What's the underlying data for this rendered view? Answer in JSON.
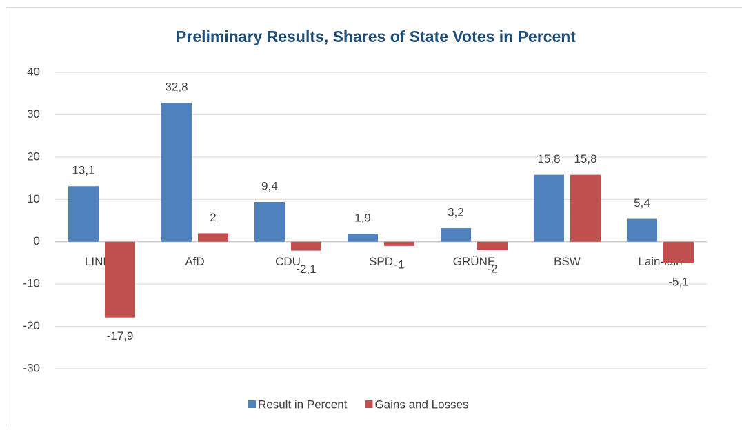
{
  "chart_data": {
    "type": "bar",
    "title": "Preliminary Results, Shares of State Votes in Percent",
    "categories": [
      "LINKE",
      "AfD",
      "CDU",
      "SPD",
      "GRÜNE",
      "BSW",
      "Lain-lain"
    ],
    "series": [
      {
        "name": "Result in Percent",
        "color": "#4f81bd",
        "values": [
          13.1,
          32.8,
          9.4,
          1.9,
          3.2,
          15.8,
          5.4
        ],
        "value_labels": [
          "13,1",
          "32,8",
          "9,4",
          "1,9",
          "3,2",
          "15,8",
          "5,4"
        ]
      },
      {
        "name": "Gains and Losses",
        "color": "#c0504d",
        "values": [
          -17.9,
          2,
          -2.1,
          -1,
          -2,
          15.8,
          -5.1
        ],
        "value_labels": [
          "-17,9",
          "2",
          "-2,1",
          "-1",
          "-2",
          "15,8",
          "-5,1"
        ]
      }
    ],
    "ylim": [
      -30,
      40
    ],
    "yticks": [
      -30,
      -20,
      -10,
      0,
      10,
      20,
      30,
      40
    ],
    "grid": true,
    "legend": "bottom"
  }
}
